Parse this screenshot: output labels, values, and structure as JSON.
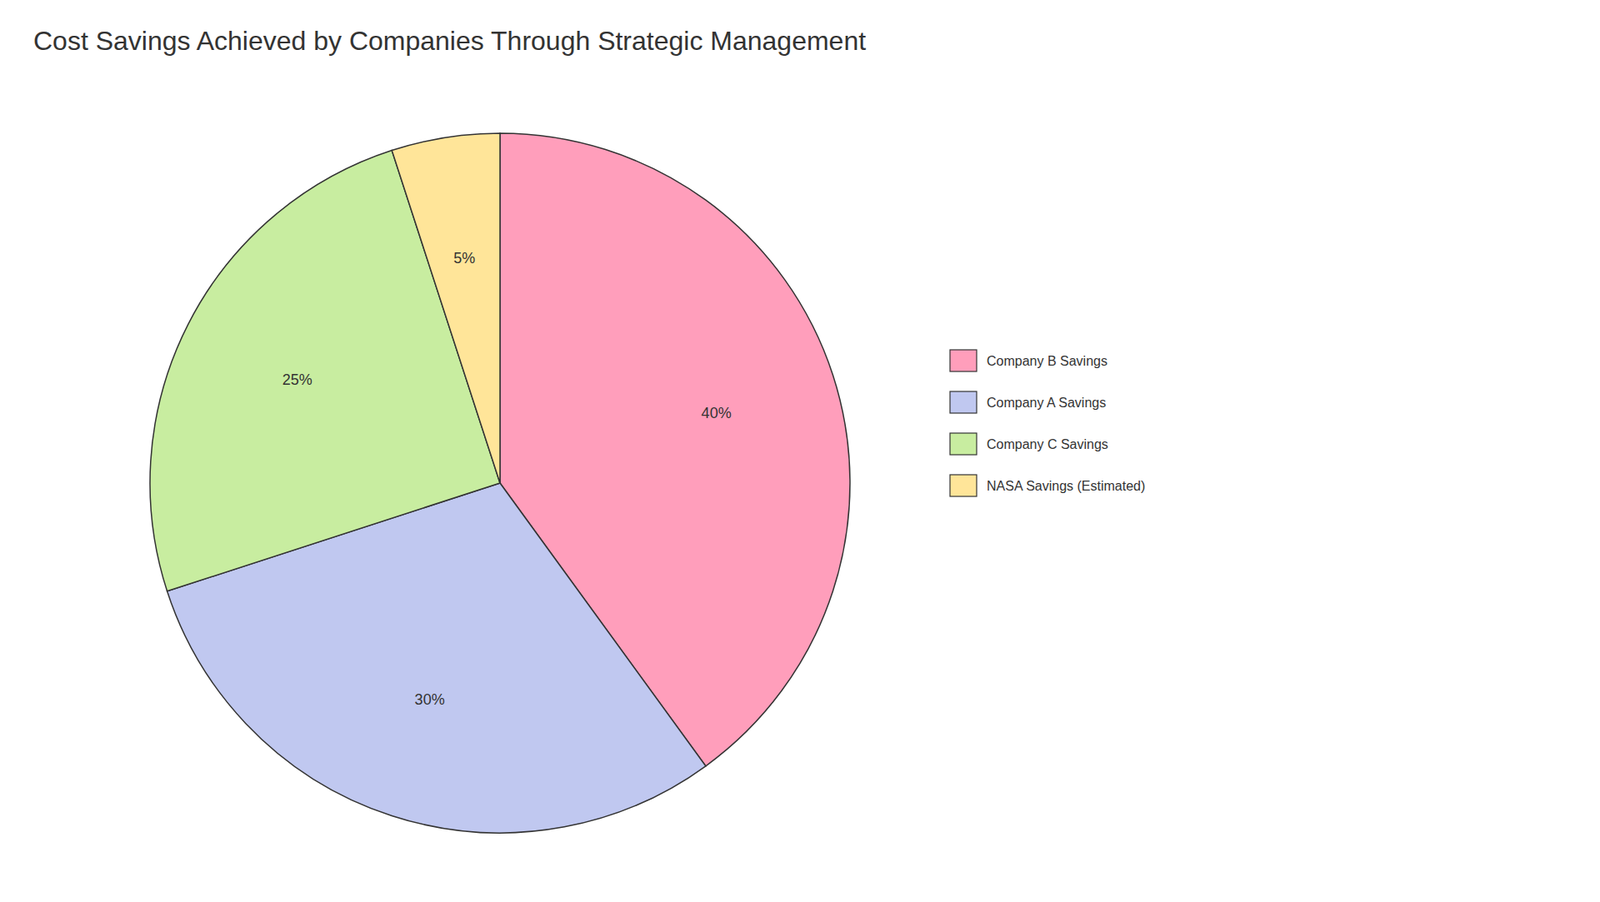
{
  "chart_data": {
    "type": "pie",
    "title": "Cost Savings Achieved by Companies Through Strategic Management",
    "categories": [
      "Company B Savings",
      "Company A Savings",
      "Company C Savings",
      "NASA Savings (Estimated)"
    ],
    "values": [
      40,
      30,
      25,
      5
    ],
    "value_labels": [
      "40%",
      "30%",
      "25%",
      "5%"
    ],
    "colors": [
      "#FF9EBB",
      "#C0C8F0",
      "#C8EDA0",
      "#FFE599"
    ],
    "data_labels": true,
    "legend": "right"
  }
}
